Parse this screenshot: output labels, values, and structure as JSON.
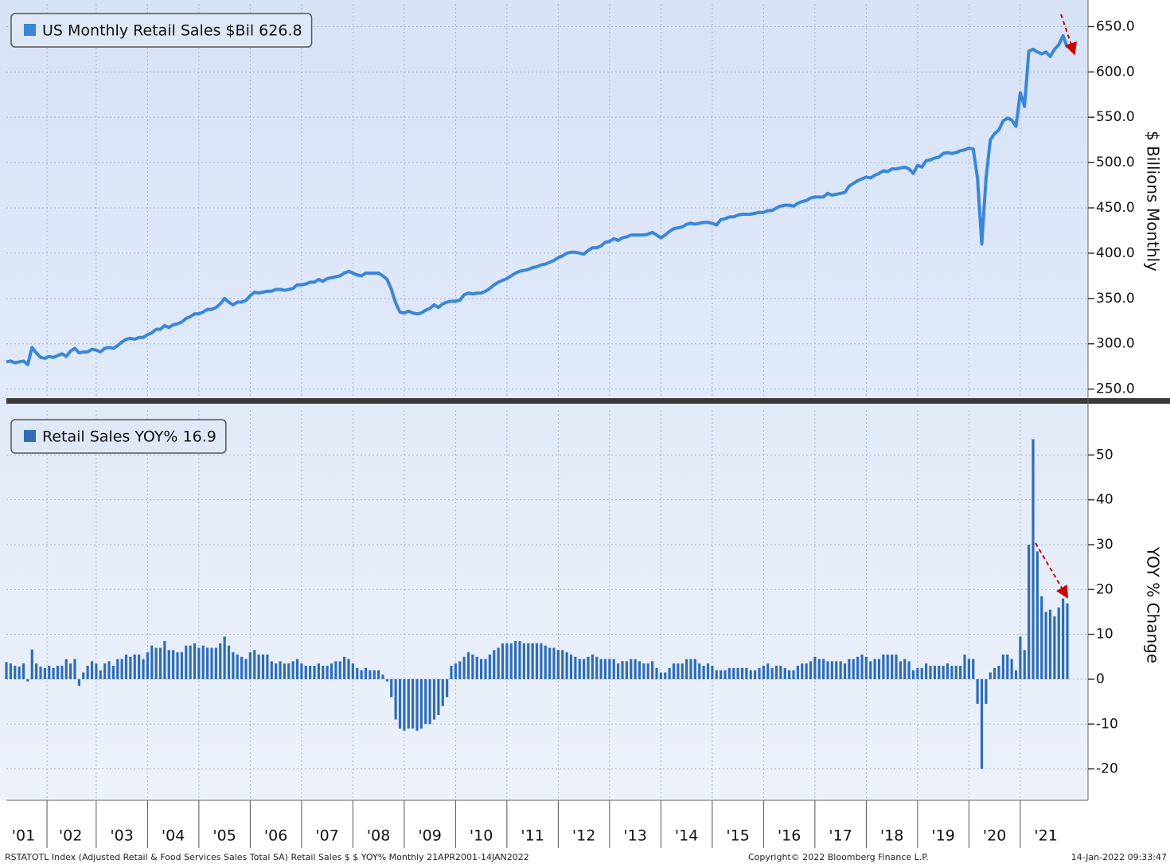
{
  "chart_data": [
    {
      "type": "line",
      "ylabel": "$ Billions Monthly",
      "ylim": [
        240,
        675
      ],
      "yticks": [
        {
          "value": 250,
          "label": "250.0"
        },
        {
          "value": 300,
          "label": "300.0"
        },
        {
          "value": 350,
          "label": "350.0"
        },
        {
          "value": 400,
          "label": "400.0"
        },
        {
          "value": 450,
          "label": "450.0"
        },
        {
          "value": 500,
          "label": "500.0"
        },
        {
          "value": 550,
          "label": "550.0"
        },
        {
          "value": 600,
          "label": "600.0"
        },
        {
          "value": 650,
          "label": "650.0"
        }
      ],
      "grid": true,
      "legend": "upper left",
      "series": [
        {
          "name": "US Monthly Retail Sales $Bil 626.8",
          "color": "#3b86d6",
          "values": [
            280,
            281,
            279,
            280,
            281,
            277,
            296,
            290,
            285,
            284,
            286,
            285,
            287,
            289,
            286,
            292,
            295,
            290,
            291,
            291,
            294,
            293,
            291,
            295,
            296,
            295,
            298,
            302,
            305,
            306,
            305,
            307,
            307,
            310,
            312,
            316,
            316,
            320,
            318,
            321,
            322,
            324,
            328,
            330,
            333,
            333,
            335,
            338,
            338,
            340,
            344,
            350,
            346,
            343,
            346,
            346,
            348,
            353,
            357,
            356,
            357,
            358,
            358,
            360,
            360,
            359,
            360,
            361,
            365,
            365,
            366,
            368,
            368,
            371,
            369,
            372,
            373,
            374,
            375,
            378,
            380,
            378,
            376,
            375,
            378,
            378,
            378,
            378,
            375,
            371,
            360,
            345,
            335,
            334,
            336,
            334,
            333,
            334,
            337,
            339,
            343,
            340,
            344,
            346,
            347,
            347,
            348,
            354,
            356,
            355,
            356,
            356,
            358,
            361,
            365,
            368,
            370,
            372,
            375,
            378,
            380,
            381,
            382,
            384,
            385,
            387,
            388,
            390,
            392,
            395,
            397,
            400,
            401,
            401,
            400,
            399,
            403,
            406,
            406,
            408,
            412,
            413,
            416,
            414,
            417,
            418,
            420,
            420,
            420,
            420,
            421,
            423,
            420,
            417,
            420,
            424,
            427,
            428,
            429,
            432,
            433,
            432,
            433,
            434,
            434,
            433,
            431,
            437,
            438,
            440,
            440,
            442,
            443,
            443,
            443,
            444,
            445,
            445,
            447,
            447,
            450,
            452,
            453,
            453,
            452,
            455,
            457,
            458,
            461,
            462,
            462,
            462,
            466,
            464,
            465,
            466,
            467,
            474,
            477,
            480,
            482,
            484,
            483,
            486,
            488,
            491,
            490,
            493,
            493,
            494,
            495,
            493,
            488,
            497,
            495,
            502,
            503,
            505,
            506,
            510,
            511,
            510,
            511,
            513,
            514,
            516,
            515,
            483,
            410,
            483,
            525,
            532,
            536,
            546,
            549,
            547,
            540,
            577,
            562,
            623,
            625,
            622,
            620,
            622,
            617,
            625,
            630,
            640,
            626.8
          ]
        }
      ]
    },
    {
      "type": "bar",
      "ylabel": "YOY % Change",
      "ylim": [
        -27,
        60
      ],
      "yticks": [
        -20,
        -10,
        0,
        10,
        20,
        30,
        40,
        50
      ],
      "grid": true,
      "legend": "upper left",
      "categories": [
        null,
        null,
        null,
        null,
        "'01",
        null,
        null,
        null,
        null,
        null,
        null,
        null,
        null,
        null,
        null,
        "'02",
        null,
        null,
        null,
        null,
        null,
        null,
        null,
        null,
        null,
        null,
        null,
        "'03",
        null,
        null,
        null,
        null,
        null,
        null,
        null,
        null,
        null,
        null,
        null,
        "'04",
        null,
        null,
        null,
        null,
        null,
        null,
        null,
        null,
        null,
        null,
        null,
        "'05",
        null,
        null,
        null,
        null,
        null,
        null,
        null,
        null,
        null,
        null,
        null,
        "'06",
        null,
        null,
        null,
        null,
        null,
        null,
        null,
        null,
        null,
        null,
        null,
        "'07",
        null,
        null,
        null,
        null,
        null,
        null,
        null,
        null,
        null,
        null,
        null,
        "'08",
        null,
        null,
        null,
        null,
        null,
        null,
        null,
        null,
        null,
        null,
        null,
        "'09",
        null,
        null,
        null,
        null,
        null,
        null,
        null,
        null,
        null,
        null,
        null,
        "'10",
        null,
        null,
        null,
        null,
        null,
        null,
        null,
        null,
        null,
        null,
        null,
        "'11",
        null,
        null,
        null,
        null,
        null,
        null,
        null,
        null,
        null,
        null,
        null,
        "'12",
        null,
        null,
        null,
        null,
        null,
        null,
        null,
        null,
        null,
        null,
        null,
        "'13",
        null,
        null,
        null,
        null,
        null,
        null,
        null,
        null,
        null,
        null,
        null,
        "'14",
        null,
        null,
        null,
        null,
        null,
        null,
        null,
        null,
        null,
        null,
        null,
        "'15",
        null,
        null,
        null,
        null,
        null,
        null,
        null,
        null,
        null,
        null,
        null,
        "'16",
        null,
        null,
        null,
        null,
        null,
        null,
        null,
        null,
        null,
        null,
        null,
        "'17",
        null,
        null,
        null,
        null,
        null,
        null,
        null,
        null,
        null,
        null,
        null,
        "'18",
        null,
        null,
        null,
        null,
        null,
        null,
        null,
        null,
        null,
        null,
        null,
        "'19",
        null,
        null,
        null,
        null,
        null,
        null,
        null,
        null,
        null,
        null,
        null,
        "'20",
        null,
        null,
        null,
        null,
        null,
        null,
        null,
        null,
        null,
        null,
        null,
        "'21",
        null,
        null,
        null,
        null,
        null
      ],
      "series": [
        {
          "name": "Retail Sales YOY% 16.9",
          "color": "#2e6db4",
          "values": [
            3.8,
            3.5,
            3.0,
            2.8,
            3.5,
            -0.5,
            6.6,
            3.5,
            2.8,
            2.5,
            3.0,
            2.5,
            3.0,
            3.0,
            4.5,
            3.5,
            4.5,
            -1.5,
            1.5,
            3.0,
            4.0,
            3.5,
            2.0,
            3.5,
            4.0,
            3.0,
            4.5,
            4.5,
            5.5,
            5.0,
            5.5,
            5.5,
            4.5,
            6.0,
            7.5,
            7.0,
            7.0,
            8.5,
            6.5,
            6.5,
            6.0,
            6.0,
            7.5,
            7.5,
            8.0,
            7.0,
            7.5,
            7.0,
            7.0,
            7.0,
            8.0,
            9.5,
            7.5,
            6.0,
            5.5,
            5.0,
            4.5,
            6.0,
            6.5,
            5.5,
            5.5,
            5.5,
            4.0,
            3.5,
            4.0,
            3.5,
            3.5,
            4.0,
            4.5,
            3.5,
            3.0,
            3.0,
            3.0,
            3.5,
            3.0,
            3.0,
            3.5,
            4.0,
            4.0,
            5.0,
            4.5,
            3.5,
            2.5,
            2.0,
            2.5,
            2.0,
            2.0,
            2.0,
            1.0,
            -0.5,
            -4,
            -9,
            -11,
            -11.5,
            -11,
            -11,
            -11.5,
            -11,
            -10,
            -10,
            -9,
            -8,
            -6,
            -4,
            3,
            3.5,
            4,
            5,
            6,
            5.5,
            5,
            4.5,
            4.5,
            5.5,
            6.5,
            7,
            8,
            8,
            8,
            8.5,
            8.5,
            8,
            8,
            8,
            8,
            8,
            7.5,
            7,
            7,
            6.5,
            6.5,
            6,
            5.5,
            5,
            4.5,
            4.5,
            5,
            5.5,
            5,
            4.5,
            4.5,
            4.5,
            4.5,
            3.5,
            4,
            4,
            4.5,
            4.5,
            4,
            3.5,
            3.5,
            4,
            2.5,
            1.5,
            1.5,
            2.5,
            3.5,
            3.5,
            3.5,
            4.5,
            4.5,
            4.5,
            3.5,
            3,
            3.5,
            3,
            2,
            2,
            2,
            2.5,
            2.5,
            2.5,
            2.5,
            2.5,
            2,
            2,
            2.5,
            3,
            3.5,
            2.5,
            3,
            3,
            2.5,
            2,
            2,
            3,
            3.5,
            3.5,
            4,
            5,
            4.5,
            4.5,
            4,
            4,
            4,
            4,
            3.5,
            4.5,
            4.5,
            5,
            5.5,
            5,
            4,
            4.5,
            4.5,
            5.5,
            5.5,
            5.5,
            5.5,
            4,
            4.5,
            4,
            2,
            2.5,
            2.5,
            3.5,
            3,
            3,
            3,
            3,
            3.5,
            3,
            3,
            3,
            5.5,
            4.5,
            4.5,
            -5.5,
            -20,
            -5.5,
            1.5,
            2.5,
            3,
            5.5,
            5.5,
            4.5,
            2,
            9.5,
            6.5,
            30,
            53.5,
            28.5,
            18.5,
            15,
            15.5,
            14,
            16,
            18,
            16.9
          ]
        }
      ]
    }
  ],
  "footer": {
    "left": "RSTATOTL Index (Adjusted Retail & Food Services Sales Total SA) Retail Sales $ $ YOY% Monthly 21APR2001-14JAN2022",
    "middle": "Copyright© 2022 Bloomberg Finance L.P.",
    "right": "14-Jan-2022 09:33:47"
  }
}
